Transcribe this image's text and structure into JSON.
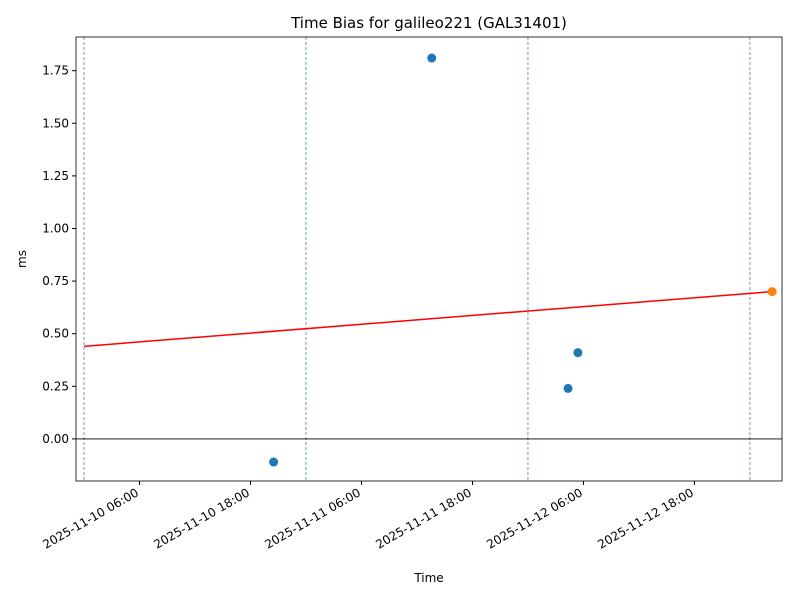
{
  "chart_data": {
    "type": "scatter",
    "title": "Time Bias for galileo221 (GAL31401)",
    "x_label": "Time",
    "y_label": "ms",
    "xlim": [
      "2025-11-09 23:08",
      "2025-11-13 03:28"
    ],
    "xticks": [
      "2025-11-10 06:00",
      "2025-11-10 18:00",
      "2025-11-11 06:00",
      "2025-11-11 18:00",
      "2025-11-12 06:00",
      "2025-11-12 18:00"
    ],
    "ylim": [
      -0.2,
      1.91
    ],
    "yticks": [
      {
        "value": 0,
        "label": "0.00"
      },
      {
        "value": 0.25,
        "label": "0.25"
      },
      {
        "value": 0.5,
        "label": "0.50"
      },
      {
        "value": 0.75,
        "label": "0.75"
      },
      {
        "value": 1,
        "label": "1.00"
      },
      {
        "value": 1.25,
        "label": "1.25"
      },
      {
        "value": 1.5,
        "label": "1.50"
      },
      {
        "value": 1.75,
        "label": "1.75"
      }
    ],
    "vlines": {
      "x": [
        "2025-11-10 00:00",
        "2025-11-11 00:00",
        "2025-11-12 00:00",
        "2025-11-13 00:00"
      ],
      "color": "#1f77b4"
    },
    "hline": {
      "y": 0,
      "color": "#000000"
    },
    "series": [
      {
        "type": "scatter",
        "color": "#1f77b4",
        "x": [
          "2025-11-10 20:30",
          "2025-11-11 13:36",
          "2025-11-12 04:20",
          "2025-11-12 05:24"
        ],
        "values": [
          -0.11,
          1.81,
          0.24,
          0.41
        ]
      },
      {
        "type": "line",
        "color": "#ff0000",
        "x": [
          "2025-11-10 00:00",
          "2025-11-13 02:24"
        ],
        "values": [
          0.44,
          0.7
        ]
      },
      {
        "type": "scatter",
        "color": "#ff7f0e",
        "x": [
          "2025-11-13 02:24"
        ],
        "values": [
          0.7
        ]
      }
    ]
  }
}
